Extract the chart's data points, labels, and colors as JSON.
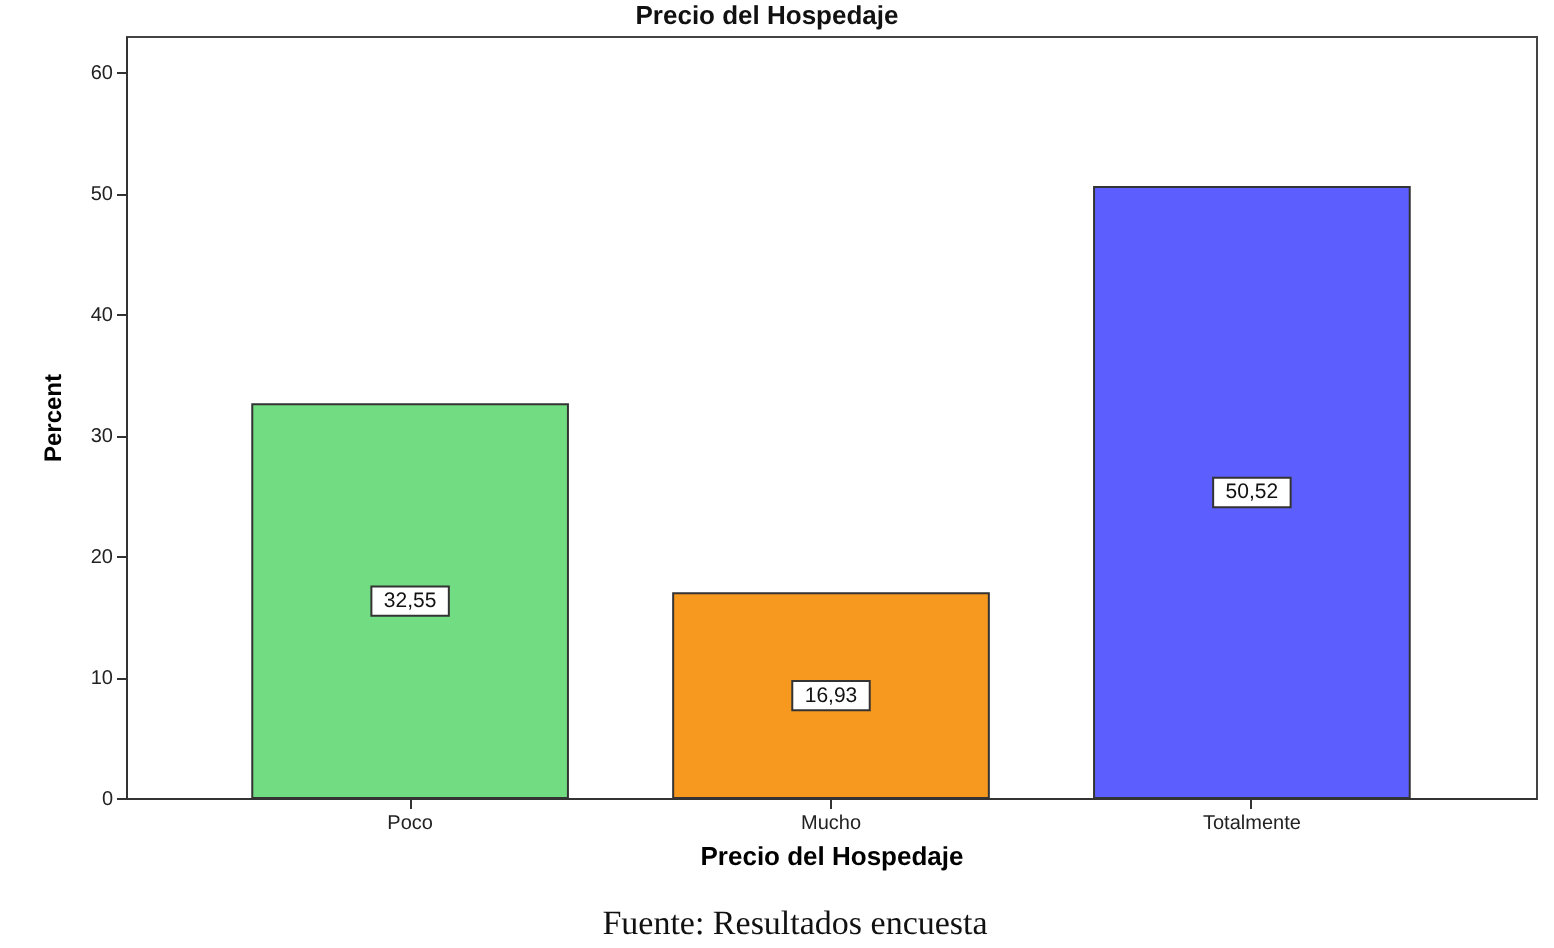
{
  "chart_data": {
    "type": "bar",
    "title": "Precio del Hospedaje",
    "xlabel": "Precio del Hospedaje",
    "ylabel": "Percent",
    "categories": [
      "Poco",
      "Mucho",
      "Totalmente"
    ],
    "values": [
      32.55,
      16.93,
      50.52
    ],
    "colors": [
      "#72dc82",
      "#f7991f",
      "#5c5efe"
    ],
    "value_labels": [
      "32,55",
      "16,93",
      "50,52"
    ],
    "ylim": [
      0,
      63
    ],
    "yticks": [
      0,
      10,
      20,
      30,
      40,
      50,
      60
    ],
    "annotations": [
      "Fuente: Resultados encuesta"
    ]
  }
}
